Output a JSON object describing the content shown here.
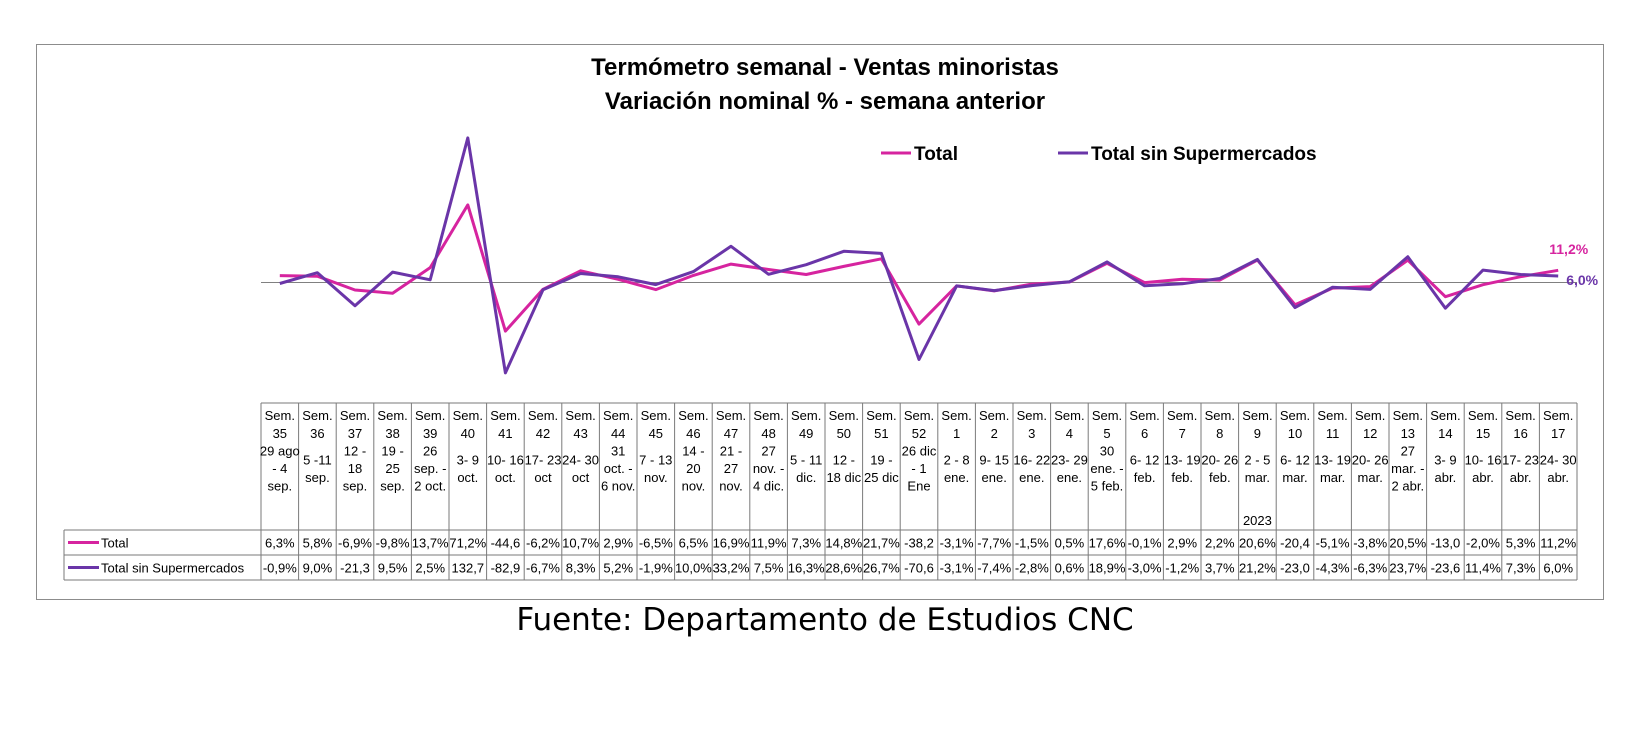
{
  "chart_data": {
    "type": "line",
    "title": "Termómetro semanal - Ventas minoristas",
    "subtitle": "Variación nominal % - semana anterior",
    "source": "Fuente: Departamento de Estudios CNC",
    "year_label": "2023",
    "grid": false,
    "legend_position": "top-right",
    "weeks": [
      "Sem. 35",
      "Sem. 36",
      "Sem. 37",
      "Sem. 38",
      "Sem. 39",
      "Sem. 40",
      "Sem. 41",
      "Sem. 42",
      "Sem. 43",
      "Sem. 44",
      "Sem. 45",
      "Sem. 46",
      "Sem. 47",
      "Sem. 48",
      "Sem. 49",
      "Sem. 50",
      "Sem. 51",
      "Sem. 52",
      "Sem. 1",
      "Sem. 2",
      "Sem. 3",
      "Sem. 4",
      "Sem. 5",
      "Sem. 6",
      "Sem. 7",
      "Sem. 8",
      "Sem. 9",
      "Sem. 10",
      "Sem. 11",
      "Sem. 12",
      "Sem. 13",
      "Sem. 14",
      "Sem. 15",
      "Sem. 16",
      "Sem. 17"
    ],
    "dates": [
      "29 ago - 4 sep.",
      "5 -11 sep.",
      "12 - 18 sep.",
      "19 - 25 sep.",
      "26 sep. - 2 oct.",
      "3- 9 oct.",
      "10- 16 oct.",
      "17- 23 oct",
      "24- 30 oct",
      "31 oct. - 6 nov.",
      "7 - 13 nov.",
      "14 - 20 nov.",
      "21 - 27 nov.",
      "27 nov. - 4 dic.",
      "5 - 11 dic.",
      "12 - 18 dic",
      "19 - 25 dic",
      "26 dic - 1 Ene",
      "2 - 8 ene.",
      "9- 15 ene.",
      "16- 22 ene.",
      "23- 29 ene.",
      "30 ene. - 5 feb.",
      "6- 12 feb.",
      "13- 19 feb.",
      "20- 26 feb.",
      "2 - 5 mar.",
      "6- 12 mar.",
      "13- 19 mar.",
      "20- 26 mar.",
      "27 mar. - 2 abr.",
      "3- 9 abr.",
      "10- 16 abr.",
      "17- 23 abr.",
      "24- 30 abr."
    ],
    "series": [
      {
        "name": "Total",
        "color": "#d6249f",
        "labels": [
          "6,3%",
          "5,8%",
          "-6,9%",
          "-9,8%",
          "13,7%",
          "71,2%",
          "-44,6",
          "-6,2%",
          "10,7%",
          "2,9%",
          "-6,5%",
          "6,5%",
          "16,9%",
          "11,9%",
          "7,3%",
          "14,8%",
          "21,7%",
          "-38,2",
          "-3,1%",
          "-7,7%",
          "-1,5%",
          "0,5%",
          "17,6%",
          "-0,1%",
          "2,9%",
          "2,2%",
          "20,6%",
          "-20,4",
          "-5,1%",
          "-3,8%",
          "20,5%",
          "-13,0",
          "-2,0%",
          "5,3%",
          "11,2%"
        ],
        "values": [
          6.3,
          5.8,
          -6.9,
          -9.8,
          13.7,
          71.2,
          -44.6,
          -6.2,
          10.7,
          2.9,
          -6.5,
          6.5,
          16.9,
          11.9,
          7.3,
          14.8,
          21.7,
          -38.2,
          -3.1,
          -7.7,
          -1.5,
          0.5,
          17.6,
          -0.1,
          2.9,
          2.2,
          20.6,
          -20.4,
          -5.1,
          -3.8,
          20.5,
          -13.0,
          -2.0,
          5.3,
          11.2
        ],
        "end_label": "11,2%"
      },
      {
        "name": "Total sin Supermercados",
        "color": "#6a35a8",
        "labels": [
          "-0,9%",
          "9,0%",
          "-21,3",
          "9,5%",
          "2,5%",
          "132,7",
          "-82,9",
          "-6,7%",
          "8,3%",
          "5,2%",
          "-1,9%",
          "10,0%",
          "33,2%",
          "7,5%",
          "16,3%",
          "28,6%",
          "26,7%",
          "-70,6",
          "-3,1%",
          "-7,4%",
          "-2,8%",
          "0,6%",
          "18,9%",
          "-3,0%",
          "-1,2%",
          "3,7%",
          "21,2%",
          "-23,0",
          "-4,3%",
          "-6,3%",
          "23,7%",
          "-23,6",
          "11,4%",
          "7,3%",
          "6,0%"
        ],
        "values": [
          -0.9,
          9.0,
          -21.3,
          9.5,
          2.5,
          132.7,
          -82.9,
          -6.7,
          8.3,
          5.2,
          -1.9,
          10.0,
          33.2,
          7.5,
          16.3,
          28.6,
          26.7,
          -70.6,
          -3.1,
          -7.4,
          -2.8,
          0.6,
          18.9,
          -3.0,
          -1.2,
          3.7,
          21.2,
          -23.0,
          -4.3,
          -6.3,
          23.7,
          -23.6,
          11.4,
          7.3,
          6.0
        ],
        "end_label": "6,0%"
      }
    ]
  }
}
